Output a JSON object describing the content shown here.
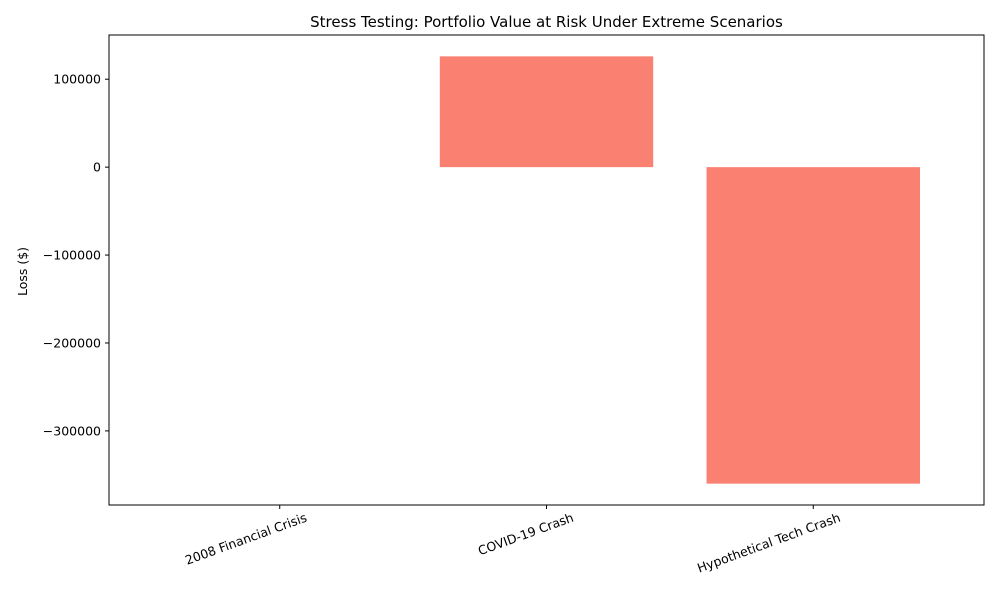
{
  "chart_data": {
    "type": "bar",
    "title": "Stress Testing: Portfolio Value at Risk Under Extreme Scenarios",
    "xlabel": "",
    "ylabel": "Loss ($)",
    "categories": [
      "2008 Financial Crisis",
      "COVID-19 Crash",
      "Hypothetical Tech Crash"
    ],
    "values": [
      0,
      126000,
      -360000
    ],
    "yticks": [
      100000,
      0,
      -100000,
      -200000,
      -300000
    ],
    "ytick_labels": [
      "100000",
      "0",
      "−100000",
      "−200000",
      "−300000"
    ],
    "ylim": [
      -384300,
      150300
    ],
    "bar_color": "#fa8072",
    "grid": false,
    "legend": "none"
  }
}
